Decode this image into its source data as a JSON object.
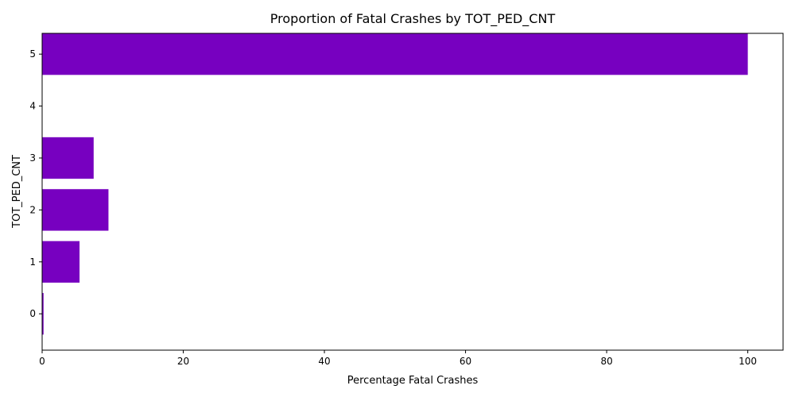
{
  "chart_data": {
    "type": "bar",
    "orientation": "horizontal",
    "title": "Proportion of Fatal Crashes by TOT_PED_CNT",
    "xlabel": "Percentage Fatal Crashes",
    "ylabel": "TOT_PED_CNT",
    "categories": [
      "0",
      "1",
      "2",
      "3",
      "4",
      "5"
    ],
    "values": [
      0.2,
      5.3,
      9.4,
      7.3,
      0,
      100
    ],
    "xlim": [
      0,
      105
    ],
    "xticks": [
      0,
      20,
      40,
      60,
      80,
      100
    ],
    "grid": false,
    "bar_color": "#7700c0"
  }
}
